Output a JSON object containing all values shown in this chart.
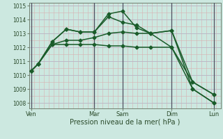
{
  "bg_color": "#cce8e0",
  "line_color": "#1a5c2a",
  "xlabel": "Pression niveau de la mer( hPa )",
  "ylim": [
    1007.6,
    1015.2
  ],
  "yticks": [
    1008,
    1009,
    1010,
    1011,
    1012,
    1013,
    1014,
    1015
  ],
  "day_labels": [
    "Ven",
    "Mar",
    "Sam",
    "Dim",
    "Lun"
  ],
  "day_positions": [
    0,
    9,
    13,
    20,
    26
  ],
  "xlim": [
    -0.3,
    27
  ],
  "series": [
    {
      "x": [
        0,
        1,
        3,
        5,
        7,
        9,
        11,
        13,
        15,
        17,
        20,
        23,
        26
      ],
      "y": [
        1010.3,
        1010.8,
        1012.4,
        1013.3,
        1013.1,
        1013.1,
        1014.4,
        1014.6,
        1013.4,
        1013.0,
        1013.2,
        1009.0,
        1008.0
      ]
    },
    {
      "x": [
        0,
        1,
        3,
        5,
        7,
        9,
        11,
        13,
        15,
        17,
        20,
        23,
        26
      ],
      "y": [
        1010.3,
        1010.8,
        1012.4,
        1013.3,
        1013.1,
        1013.1,
        1014.2,
        1013.8,
        1013.6,
        1013.0,
        1013.2,
        1009.5,
        1008.6
      ]
    },
    {
      "x": [
        0,
        1,
        3,
        5,
        7,
        9,
        11,
        13,
        15,
        17,
        20,
        23,
        26
      ],
      "y": [
        1010.3,
        1010.8,
        1012.2,
        1012.5,
        1012.5,
        1012.7,
        1013.0,
        1013.1,
        1013.0,
        1013.0,
        1012.0,
        1009.5,
        1008.6
      ]
    },
    {
      "x": [
        0,
        1,
        3,
        5,
        7,
        9,
        11,
        13,
        15,
        17,
        20,
        23,
        26
      ],
      "y": [
        1010.3,
        1010.8,
        1012.2,
        1012.2,
        1012.2,
        1012.2,
        1012.1,
        1012.1,
        1012.0,
        1012.0,
        1012.0,
        1009.0,
        1008.0
      ]
    }
  ],
  "vline_positions": [
    0,
    9,
    13,
    20,
    26
  ],
  "marker_size": 2.5,
  "linewidth": 1.1,
  "minor_grid_color": "#d8b0b0",
  "major_grid_color": "#b8b8c8",
  "vline_color": "#505060",
  "tick_fontsize": 5.5,
  "xlabel_fontsize": 7.0
}
